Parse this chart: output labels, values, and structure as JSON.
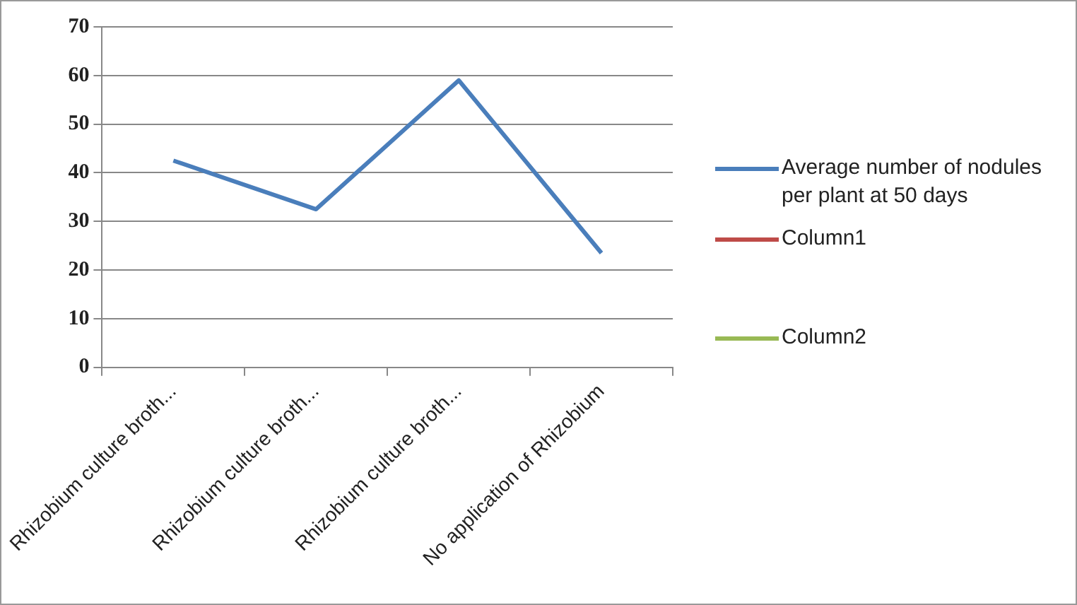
{
  "chart_data": {
    "type": "line",
    "categories": [
      "Rhizobium culture broth...",
      "Rhizobium culture broth...",
      "Rhizobium culture broth...",
      "No application of Rhizobium"
    ],
    "series": [
      {
        "name": "Average  number of nodules per plant at 50 days",
        "color": "#4a7ebb",
        "values": [
          42.5,
          32.5,
          59,
          23.5
        ]
      },
      {
        "name": "Column1",
        "color": "#be4b48",
        "values": [
          null,
          null,
          null,
          null
        ]
      },
      {
        "name": "Column2",
        "color": "#98b954",
        "values": [
          null,
          null,
          null,
          null
        ]
      }
    ],
    "ylim": [
      0,
      70
    ],
    "yticks": [
      0,
      10,
      20,
      30,
      40,
      50,
      60,
      70
    ],
    "grid": "y",
    "legend": "right",
    "marker": "none",
    "line_style": "solid"
  }
}
